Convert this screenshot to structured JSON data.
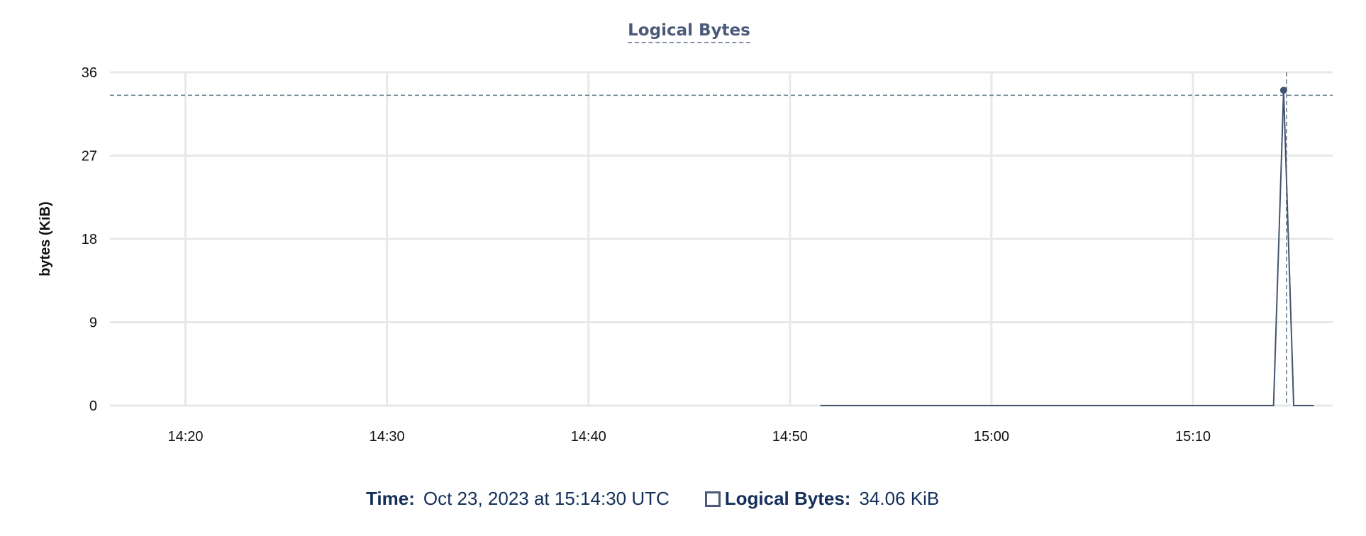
{
  "chart_data": {
    "type": "line",
    "title": "Logical Bytes",
    "ylabel": "bytes (KiB)",
    "xlabel": "",
    "ylim": [
      0,
      36
    ],
    "yticks": [
      0,
      9,
      18,
      27,
      36
    ],
    "xlim": [
      "14:16:15",
      "15:16:56"
    ],
    "xticks": [
      "14:20",
      "14:30",
      "14:40",
      "14:50",
      "15:00",
      "15:10"
    ],
    "grid": true,
    "series": [
      {
        "name": "Logical Bytes",
        "color": "#44546f",
        "points": [
          [
            "14:51:30",
            0
          ],
          [
            "15:14:00",
            0
          ],
          [
            "15:14:30",
            34.06
          ],
          [
            "15:15:00",
            0
          ],
          [
            "15:16:00",
            0
          ]
        ]
      }
    ],
    "crosshair": {
      "x": "15:14:30",
      "y": 34.06
    }
  },
  "legend": {
    "time_label": "Time:",
    "time_value": "Oct 23, 2023 at 15:14:30 UTC",
    "series_label": "Logical Bytes:",
    "series_value": "34.06 KiB"
  }
}
